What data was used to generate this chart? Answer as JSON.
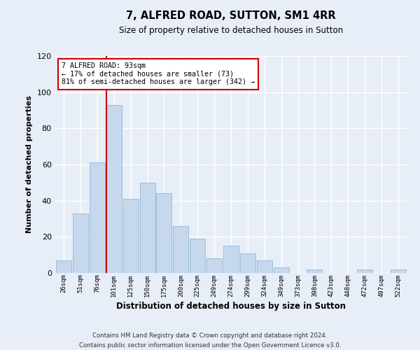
{
  "title": "7, ALFRED ROAD, SUTTON, SM1 4RR",
  "subtitle": "Size of property relative to detached houses in Sutton",
  "xlabel": "Distribution of detached houses by size in Sutton",
  "ylabel": "Number of detached properties",
  "bar_labels": [
    "26sqm",
    "51sqm",
    "76sqm",
    "101sqm",
    "125sqm",
    "150sqm",
    "175sqm",
    "200sqm",
    "225sqm",
    "249sqm",
    "274sqm",
    "299sqm",
    "324sqm",
    "349sqm",
    "373sqm",
    "398sqm",
    "423sqm",
    "448sqm",
    "472sqm",
    "497sqm",
    "522sqm"
  ],
  "bar_values": [
    7,
    33,
    61,
    93,
    41,
    50,
    44,
    26,
    19,
    8,
    15,
    11,
    7,
    3,
    0,
    2,
    0,
    0,
    2,
    0,
    2
  ],
  "bar_color": "#c5d8ee",
  "bar_edge_color": "#9bbcd8",
  "ylim": [
    0,
    120
  ],
  "yticks": [
    0,
    20,
    40,
    60,
    80,
    100,
    120
  ],
  "ref_line_index": 3,
  "ref_line_color": "#cc0000",
  "annotation_title": "7 ALFRED ROAD: 93sqm",
  "annotation_line1": "← 17% of detached houses are smaller (73)",
  "annotation_line2": "81% of semi-detached houses are larger (342) →",
  "annotation_box_color": "#cc0000",
  "footer_line1": "Contains HM Land Registry data © Crown copyright and database right 2024.",
  "footer_line2": "Contains public sector information licensed under the Open Government Licence v3.0.",
  "background_color": "#e8eef8",
  "plot_bg_color": "#e8eef8",
  "grid_color": "#ffffff"
}
